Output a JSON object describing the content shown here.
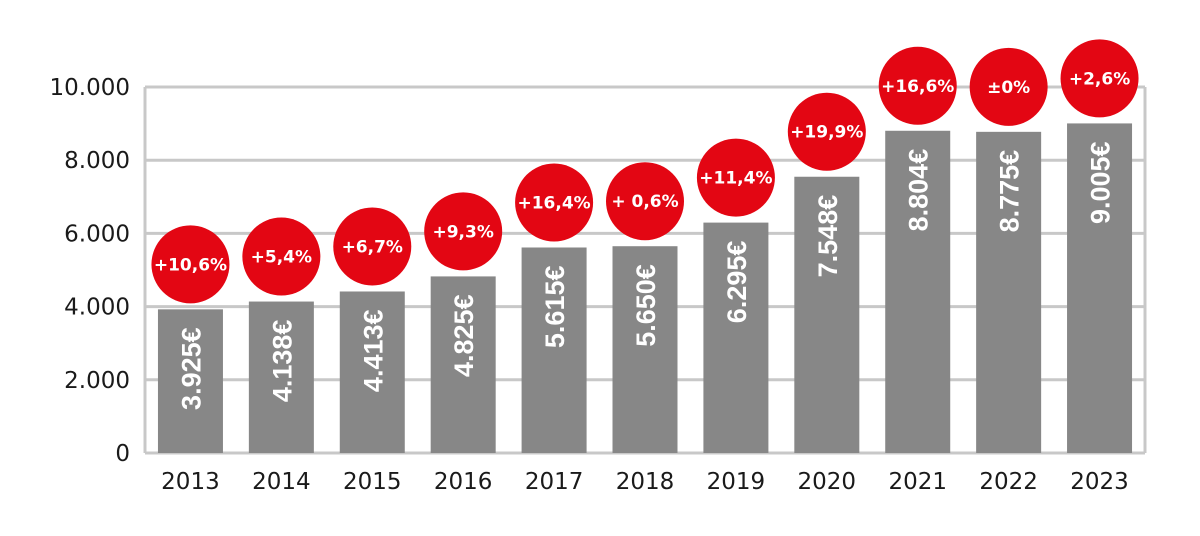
{
  "chart_data": {
    "type": "bar",
    "title": "",
    "xlabel": "",
    "ylabel": "",
    "ylim": [
      0,
      10000
    ],
    "y_ticks": [
      "0",
      "2.000",
      "4.000",
      "6.000",
      "8.000",
      "10.000"
    ],
    "y_tick_values": [
      0,
      2000,
      4000,
      6000,
      8000,
      10000
    ],
    "grid": true,
    "categories": [
      "2013",
      "2014",
      "2015",
      "2016",
      "2017",
      "2018",
      "2019",
      "2020",
      "2021",
      "2022",
      "2023"
    ],
    "values": [
      3925,
      4138,
      4413,
      4825,
      5615,
      5650,
      6295,
      7548,
      8804,
      8775,
      9005
    ],
    "value_labels": [
      "3.925€",
      "4.138€",
      "4.413€",
      "4.825€",
      "5.615€",
      "5.650€",
      "6.295€",
      "7.548€",
      "8.804€",
      "8.775€",
      "9.005€"
    ],
    "change_labels": [
      "+10,6%",
      "+5,4%",
      "+6,7%",
      "+9,3%",
      "+16,4%",
      "+ 0,6%",
      "+11,4%",
      "+19,9%",
      "+16,6%",
      "±0%",
      "+2,6%"
    ],
    "colors": {
      "bar": "#878787",
      "badge": "#e30613",
      "grid": "#c8c8c8"
    }
  }
}
